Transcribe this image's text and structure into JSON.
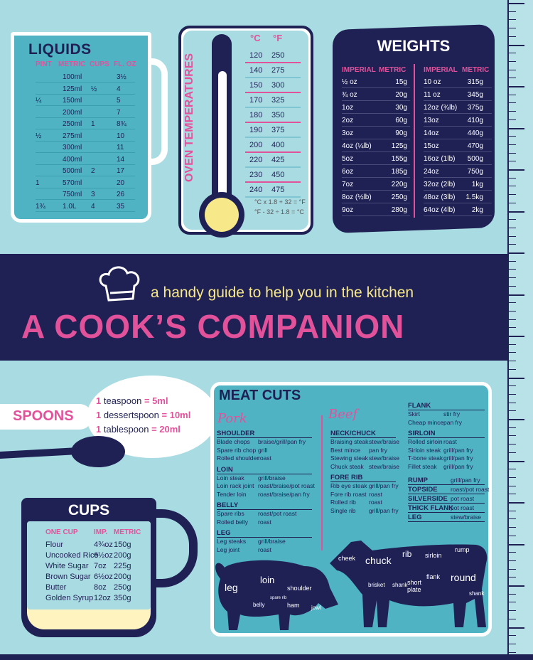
{
  "liquids": {
    "title": "LIQUIDS",
    "headers": [
      "PINT",
      "METRIC",
      "CUPS",
      "FL. OZ"
    ],
    "rows": [
      [
        "",
        "100ml",
        "",
        "3½"
      ],
      [
        "",
        "125ml",
        "½",
        "4"
      ],
      [
        "¼",
        "150ml",
        "",
        "5"
      ],
      [
        "",
        "200ml",
        "",
        "7"
      ],
      [
        "",
        "250ml",
        "1",
        "8¾"
      ],
      [
        "½",
        "275ml",
        "",
        "10"
      ],
      [
        "",
        "300ml",
        "",
        "11"
      ],
      [
        "",
        "400ml",
        "",
        "14"
      ],
      [
        "",
        "500ml",
        "2",
        "17"
      ],
      [
        "1",
        "570ml",
        "",
        "20"
      ],
      [
        "",
        "750ml",
        "3",
        "26"
      ],
      [
        "1¾",
        "1.0L",
        "4",
        "35"
      ]
    ]
  },
  "oven": {
    "title": "OVEN TEMPERATURES",
    "headers": [
      "°C",
      "°F"
    ],
    "rows": [
      [
        "120",
        "250"
      ],
      [
        "140",
        "275"
      ],
      [
        "150",
        "300"
      ],
      [
        "170",
        "325"
      ],
      [
        "180",
        "350"
      ],
      [
        "190",
        "375"
      ],
      [
        "200",
        "400"
      ],
      [
        "220",
        "425"
      ],
      [
        "230",
        "450"
      ],
      [
        "240",
        "475"
      ]
    ],
    "formula_1": "°C x 1.8 + 32 = °F",
    "formula_2": "°F - 32 ÷ 1.8 = °C"
  },
  "weights": {
    "title": "WEIGHTS",
    "headers": [
      "IMPERIAL",
      "METRIC",
      "IMPERIAL",
      "METRIC"
    ],
    "left": [
      [
        "½ oz",
        "15g"
      ],
      [
        "¾ oz",
        "20g"
      ],
      [
        "1oz",
        "30g"
      ],
      [
        "2oz",
        "60g"
      ],
      [
        "3oz",
        "90g"
      ],
      [
        "4oz (¼lb)",
        "125g"
      ],
      [
        "5oz",
        "155g"
      ],
      [
        "6oz",
        "185g"
      ],
      [
        "7oz",
        "220g"
      ],
      [
        "8oz (½lb)",
        "250g"
      ],
      [
        "9oz",
        "280g"
      ]
    ],
    "right": [
      [
        "10 oz",
        "315g"
      ],
      [
        "11 oz",
        "345g"
      ],
      [
        "12oz (¾lb)",
        "375g"
      ],
      [
        "13oz",
        "410g"
      ],
      [
        "14oz",
        "440g"
      ],
      [
        "15oz",
        "470g"
      ],
      [
        "16oz (1lb)",
        "500g"
      ],
      [
        "24oz",
        "750g"
      ],
      [
        "32oz (2lb)",
        "1kg"
      ],
      [
        "48oz (3lb)",
        "1.5kg"
      ],
      [
        "64oz (4lb)",
        "2kg"
      ]
    ]
  },
  "banner": {
    "tagline": "a handy guide to help you in the kitchen",
    "title": "A COOK’S COMPANION"
  },
  "spoons": {
    "title": "SPOONS",
    "lines": [
      {
        "qty": "1",
        "text": " teaspoon ",
        "eq": "= 5ml"
      },
      {
        "qty": "1",
        "text": " dessertspoon ",
        "eq": "= 10ml"
      },
      {
        "qty": "1",
        "text": " tablespoon ",
        "eq": "= 20ml"
      }
    ]
  },
  "cups": {
    "title": "CUPS",
    "headers": [
      "ONE CUP",
      "IMP.",
      "METRIC"
    ],
    "rows": [
      [
        "Flour",
        "4¾oz",
        "150g"
      ],
      [
        "Uncooked Rice",
        "6½oz",
        "200g"
      ],
      [
        "White Sugar",
        "7oz",
        "225g"
      ],
      [
        "Brown Sugar",
        "6½oz",
        "200g"
      ],
      [
        "Butter",
        "8oz",
        "250g"
      ],
      [
        "Golden Syrup",
        "12oz",
        "350g"
      ]
    ]
  },
  "meat": {
    "title": "MEAT CUTS",
    "pork_label": "Pork",
    "beef_label": "Beef",
    "pork": [
      {
        "name": "SHOULDER",
        "rows": [
          [
            "Blade chops",
            "braise/grill/pan fry"
          ],
          [
            "Spare rib chop",
            "grill"
          ],
          [
            "Rolled shoulder",
            "roast"
          ]
        ]
      },
      {
        "name": "LOIN",
        "rows": [
          [
            "Loin steak",
            "grill/braise"
          ],
          [
            "Loin rack joint",
            "roast/braise/pot roast"
          ],
          [
            "Tender loin",
            "roast/braise/pan fry"
          ]
        ]
      },
      {
        "name": "BELLY",
        "rows": [
          [
            "Spare ribs",
            "roast/pot roast"
          ],
          [
            "Rolled belly",
            "roast"
          ]
        ]
      },
      {
        "name": "LEG",
        "rows": [
          [
            "Leg steaks",
            "grill/braise"
          ],
          [
            "Leg joint",
            "roast"
          ]
        ]
      }
    ],
    "beef_left": [
      {
        "name": "NECK/CHUCK",
        "rows": [
          [
            "Braising steak",
            "stew/braise"
          ],
          [
            "Best mince",
            "pan fry"
          ],
          [
            "Stewing steak",
            "stew/braise"
          ],
          [
            "Chuck steak",
            "stew/braise"
          ]
        ]
      },
      {
        "name": "FORE RIB",
        "rows": [
          [
            "Rib eye steak",
            "grill/pan fry"
          ],
          [
            "Fore rib roast",
            "roast"
          ],
          [
            "Rolled rib",
            "roast"
          ],
          [
            "Single rib",
            "grill/pan fry"
          ]
        ]
      }
    ],
    "beef_right": [
      {
        "name": "FLANK",
        "rows": [
          [
            "Skirt",
            "stir fry"
          ],
          [
            "Cheap mince",
            "pan fry"
          ]
        ]
      },
      {
        "name": "SIRLOIN",
        "rows": [
          [
            "Rolled sirloin",
            "roast"
          ],
          [
            "Sirloin steak",
            "grill/pan fry"
          ],
          [
            "T-bone steak",
            "grill/pan fry"
          ],
          [
            "Fillet steak",
            "grill/pan fry"
          ]
        ]
      }
    ],
    "beef_single": [
      [
        "RUMP",
        "grill/pan fry"
      ],
      [
        "TOPSIDE",
        "roast/pot roast"
      ],
      [
        "SILVERSIDE",
        "pot roast"
      ],
      [
        "THICK FLANK",
        "pot roast"
      ],
      [
        "LEG",
        "stew/braise"
      ]
    ],
    "pig_labels": [
      "leg",
      "loin",
      "shoulder",
      "belly",
      "spare rib",
      "ham",
      "jowl"
    ],
    "cow_labels": [
      "cheek",
      "chuck",
      "rib",
      "sirloin",
      "rump",
      "round",
      "brisket",
      "shank",
      "short plate",
      "flank",
      "shank"
    ]
  },
  "colors": {
    "navy": "#1f2155",
    "pink": "#e2529b",
    "teal": "#4fb3c4",
    "background": "#a9dbe2",
    "yellow": "#f7e889"
  }
}
